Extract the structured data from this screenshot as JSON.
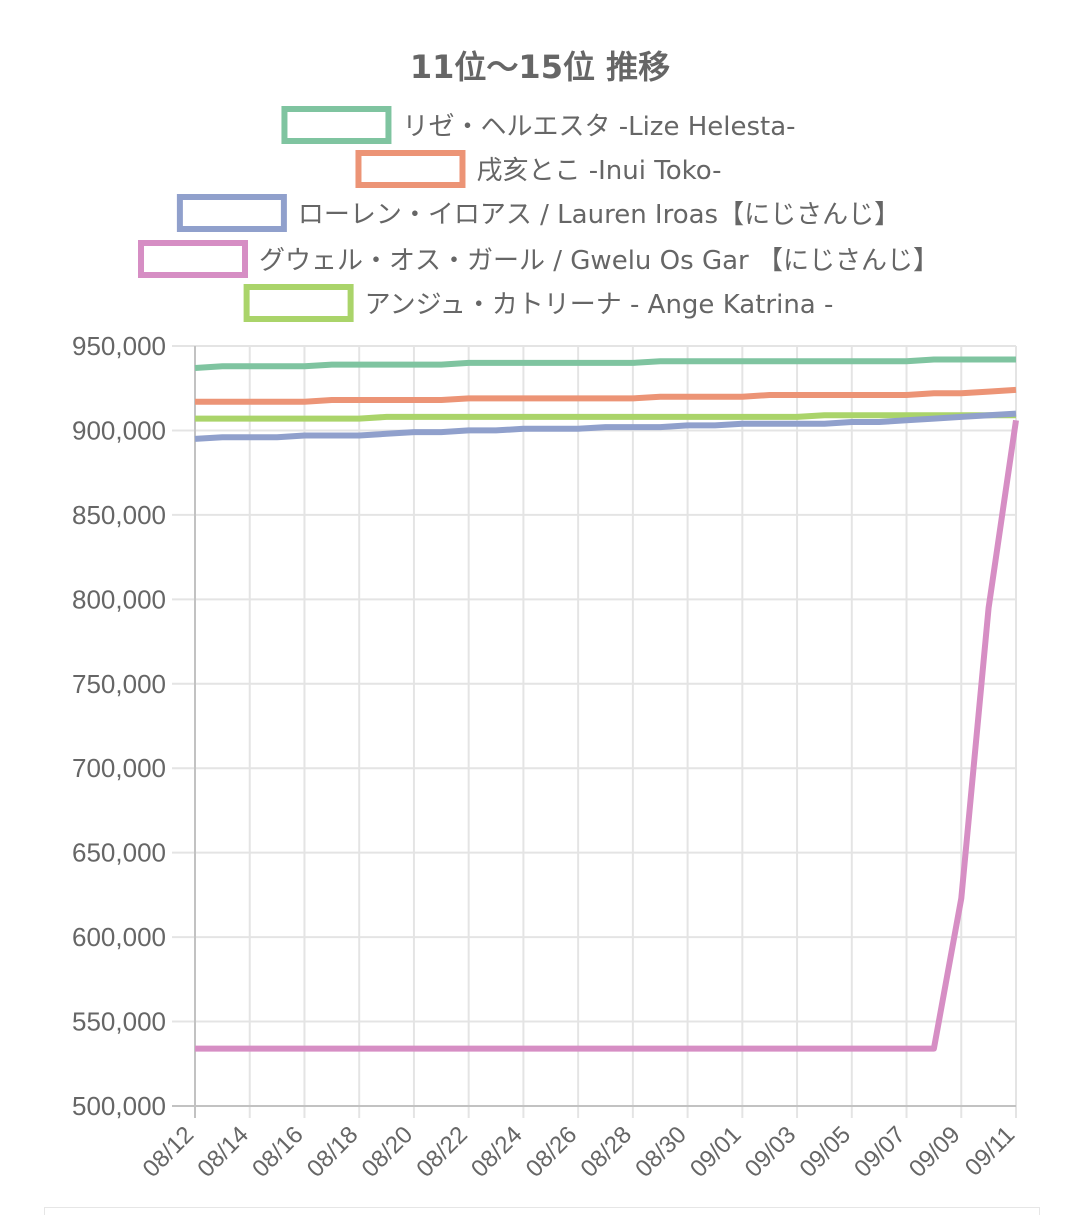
{
  "chart_data": {
    "type": "line",
    "title": "11位〜15位 推移",
    "xlabel": "",
    "ylabel": "",
    "ylim": [
      500000,
      950000
    ],
    "yticks": [
      500000,
      550000,
      600000,
      650000,
      700000,
      750000,
      800000,
      850000,
      900000,
      950000
    ],
    "ytick_labels": [
      "500,000",
      "550,000",
      "600,000",
      "650,000",
      "700,000",
      "750,000",
      "800,000",
      "850,000",
      "900,000",
      "950,000"
    ],
    "x": [
      "08/12",
      "08/13",
      "08/14",
      "08/15",
      "08/16",
      "08/17",
      "08/18",
      "08/19",
      "08/20",
      "08/21",
      "08/22",
      "08/23",
      "08/24",
      "08/25",
      "08/26",
      "08/27",
      "08/28",
      "08/29",
      "08/30",
      "08/31",
      "09/01",
      "09/02",
      "09/03",
      "09/04",
      "09/05",
      "09/06",
      "09/07",
      "09/08",
      "09/09",
      "09/10",
      "09/11"
    ],
    "x_tick_labels": [
      "08/12",
      "08/14",
      "08/16",
      "08/18",
      "08/20",
      "08/22",
      "08/24",
      "08/26",
      "08/28",
      "08/30",
      "09/01",
      "09/03",
      "09/05",
      "09/07",
      "09/09",
      "09/11"
    ],
    "grid": true,
    "legend_position": "top",
    "series": [
      {
        "name": "リゼ・ヘルエスタ -Lize Helesta-",
        "color": "#7fc4a0",
        "values": [
          937000,
          938000,
          938000,
          938000,
          938000,
          939000,
          939000,
          939000,
          939000,
          939000,
          940000,
          940000,
          940000,
          940000,
          940000,
          940000,
          940000,
          941000,
          941000,
          941000,
          941000,
          941000,
          941000,
          941000,
          941000,
          941000,
          941000,
          942000,
          942000,
          942000,
          942000
        ]
      },
      {
        "name": "戌亥とこ -Inui Toko-",
        "color": "#ec9476",
        "values": [
          917000,
          917000,
          917000,
          917000,
          917000,
          918000,
          918000,
          918000,
          918000,
          918000,
          919000,
          919000,
          919000,
          919000,
          919000,
          919000,
          919000,
          920000,
          920000,
          920000,
          920000,
          921000,
          921000,
          921000,
          921000,
          921000,
          921000,
          922000,
          922000,
          923000,
          924000
        ]
      },
      {
        "name": "ローレン・イロアス / Lauren Iroas【にじさんじ】",
        "color": "#90a0cc",
        "values": [
          895000,
          896000,
          896000,
          896000,
          897000,
          897000,
          897000,
          898000,
          899000,
          899000,
          900000,
          900000,
          901000,
          901000,
          901000,
          902000,
          902000,
          902000,
          903000,
          903000,
          904000,
          904000,
          904000,
          904000,
          905000,
          905000,
          906000,
          907000,
          908000,
          909000,
          910000
        ]
      },
      {
        "name": "グウェル・オス・ガール / Gwelu Os Gar 【にじさんじ】",
        "color": "#d68ec4",
        "values": [
          534000,
          534000,
          534000,
          534000,
          534000,
          534000,
          534000,
          534000,
          534000,
          534000,
          534000,
          534000,
          534000,
          534000,
          534000,
          534000,
          534000,
          534000,
          534000,
          534000,
          534000,
          534000,
          534000,
          534000,
          534000,
          534000,
          534000,
          534000,
          623000,
          795000,
          906000
        ]
      },
      {
        "name": "アンジュ・カトリーナ - Ange Katrina -",
        "color": "#aad46a",
        "values": [
          907000,
          907000,
          907000,
          907000,
          907000,
          907000,
          907000,
          908000,
          908000,
          908000,
          908000,
          908000,
          908000,
          908000,
          908000,
          908000,
          908000,
          908000,
          908000,
          908000,
          908000,
          908000,
          908000,
          909000,
          909000,
          909000,
          909000,
          909000,
          909000,
          909000,
          909000
        ]
      }
    ]
  }
}
